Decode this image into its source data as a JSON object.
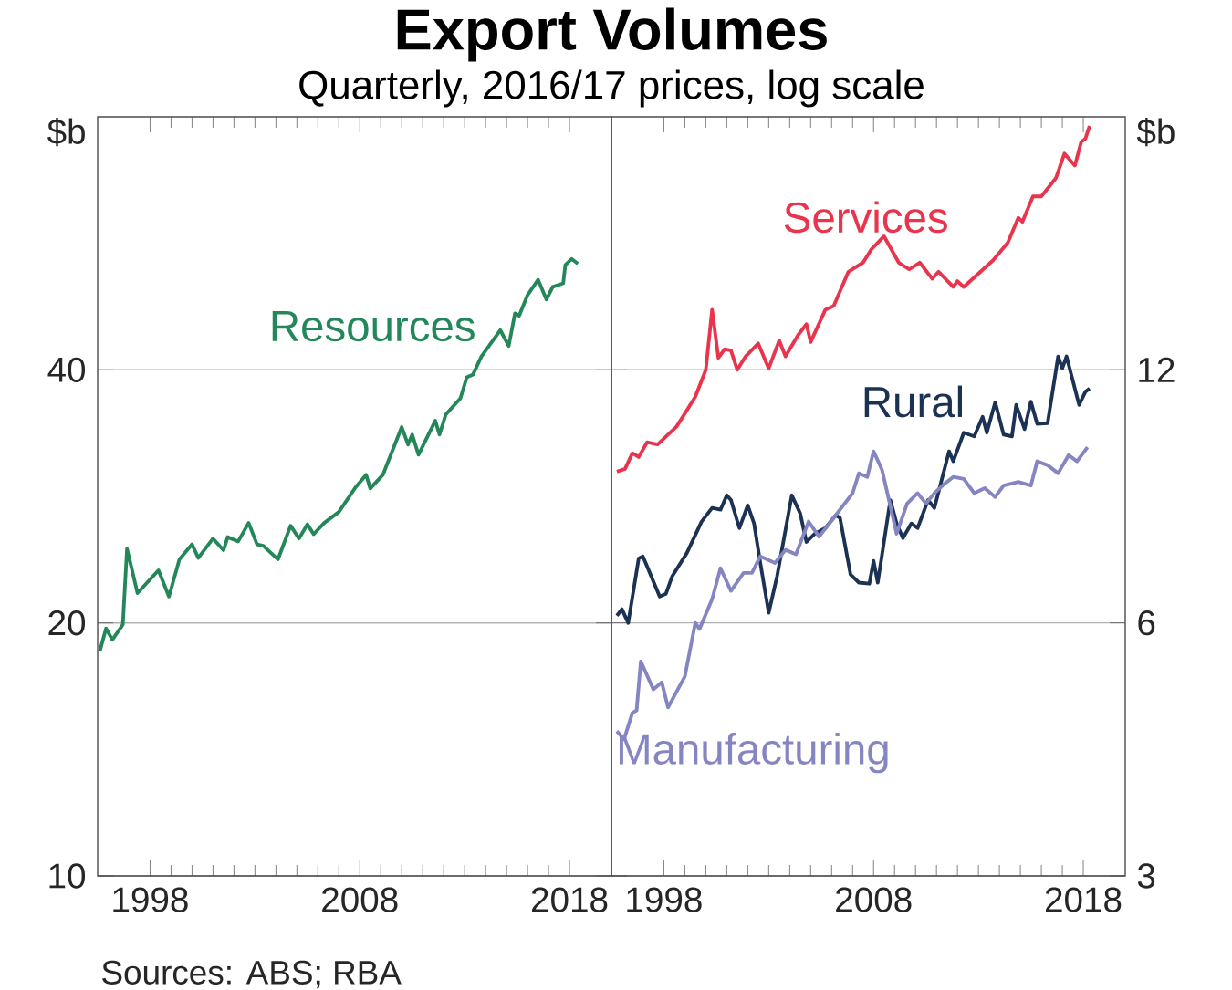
{
  "chart_data": [
    {
      "type": "line",
      "title": "Export Volumes",
      "subtitle": "Quarterly, 2016/17 prices, log scale",
      "ylabel": "$b",
      "annotations": [
        "Sources: ABS; RBA"
      ],
      "log": "y",
      "grid": "y",
      "xlim": [
        1995.5,
        2020
      ],
      "xticks": [
        1998,
        2008,
        2018
      ],
      "ylim": [
        10,
        80
      ],
      "yticks": [
        10,
        20,
        40
      ],
      "series": [
        {
          "name": "Resources",
          "color": "#23875a",
          "x": [
            1995.6,
            1995.9,
            1996.2,
            1996.7,
            1996.9,
            1997.4,
            1998.4,
            1998.9,
            1999.4,
            2000.0,
            2000.3,
            2001.0,
            2001.5,
            2001.7,
            2002.2,
            2002.7,
            2003.1,
            2003.4,
            2004.1,
            2004.7,
            2005.1,
            2005.5,
            2005.8,
            2006.3,
            2007.0,
            2007.8,
            2008.3,
            2008.5,
            2009.1,
            2010.0,
            2010.3,
            2010.5,
            2010.8,
            2011.6,
            2011.8,
            2012.1,
            2012.8,
            2013.1,
            2013.4,
            2013.8,
            2014.7,
            2015.1,
            2015.4,
            2015.6,
            2016.0,
            2016.5,
            2016.9,
            2017.2,
            2017.7,
            2017.8,
            2018.1,
            2018.4
          ],
          "values": [
            18.5,
            19.7,
            19.1,
            19.9,
            24.5,
            21.7,
            23.1,
            21.5,
            23.8,
            24.8,
            23.9,
            25.2,
            24.4,
            25.3,
            25.0,
            26.3,
            24.8,
            24.7,
            23.8,
            26.1,
            25.2,
            26.2,
            25.5,
            26.3,
            27.1,
            29.0,
            30.0,
            28.9,
            30.0,
            34.2,
            32.6,
            33.5,
            31.7,
            34.8,
            33.5,
            35.4,
            37.0,
            39.2,
            39.5,
            41.5,
            44.6,
            42.7,
            46.7,
            46.4,
            49.1,
            51.2,
            48.5,
            50.2,
            50.7,
            53.3,
            54.2,
            53.5
          ]
        }
      ]
    },
    {
      "type": "line",
      "ylabel": "$b",
      "log": "y",
      "grid": "y",
      "xlim": [
        1995.5,
        2020
      ],
      "xticks": [
        1998,
        2008,
        2018
      ],
      "ylim": [
        3,
        24
      ],
      "yticks": [
        3,
        6,
        12
      ],
      "series": [
        {
          "name": "Services",
          "color": "#e8344c",
          "x": [
            1995.76,
            1996.15,
            1996.5,
            1996.8,
            1997.2,
            1997.7,
            1998.6,
            1998.9,
            1999.5,
            2000.0,
            2000.3,
            2000.6,
            2000.9,
            2001.2,
            2001.5,
            2001.9,
            2002.5,
            2003.0,
            2003.5,
            2003.8,
            2004.4,
            2004.8,
            2005.0,
            2005.7,
            2006.1,
            2006.8,
            2007.5,
            2007.9,
            2008.5,
            2009.2,
            2009.7,
            2010.2,
            2010.8,
            2011.1,
            2011.8,
            2012.0,
            2012.3,
            2013.7,
            2014.4,
            2014.9,
            2015.1,
            2015.6,
            2016.0,
            2016.7,
            2017.1,
            2017.6,
            2017.9,
            2018.1,
            2018.3
          ],
          "values": [
            9.08,
            9.15,
            9.55,
            9.45,
            9.84,
            9.78,
            10.27,
            10.55,
            11.15,
            12.0,
            14.15,
            12.4,
            12.7,
            12.65,
            12.0,
            12.45,
            12.9,
            12.05,
            13.0,
            12.45,
            13.2,
            13.6,
            12.95,
            14.15,
            14.3,
            15.7,
            16.1,
            16.7,
            17.3,
            16.1,
            15.8,
            16.1,
            15.4,
            15.7,
            15.06,
            15.3,
            15.06,
            16.2,
            17.0,
            18.2,
            18.0,
            19.3,
            19.3,
            20.3,
            21.7,
            21.0,
            22.4,
            22.6,
            23.4
          ]
        },
        {
          "name": "Rural",
          "color": "#1c3254",
          "x": [
            1995.76,
            1996.0,
            1996.3,
            1996.8,
            1997.0,
            1997.8,
            1998.1,
            1998.4,
            1999.1,
            1999.8,
            2000.3,
            2000.7,
            2001.0,
            2001.2,
            2001.6,
            2002.0,
            2002.3,
            2002.6,
            2003.0,
            2003.4,
            2004.1,
            2004.5,
            2004.8,
            2005.2,
            2005.7,
            2006.2,
            2006.4,
            2006.9,
            2007.3,
            2007.8,
            2008.0,
            2008.2,
            2008.8,
            2009.1,
            2009.4,
            2009.8,
            2010.1,
            2010.6,
            2010.9,
            2011.6,
            2011.8,
            2012.3,
            2012.8,
            2013.2,
            2013.4,
            2013.8,
            2014.2,
            2014.6,
            2014.8,
            2015.2,
            2015.5,
            2015.8,
            2016.3,
            2016.8,
            2017.0,
            2017.2,
            2017.8,
            2018.1,
            2018.3
          ],
          "values": [
            6.12,
            6.23,
            6.0,
            7.16,
            7.2,
            6.45,
            6.5,
            6.82,
            7.27,
            7.92,
            8.22,
            8.18,
            8.51,
            8.4,
            7.78,
            8.28,
            7.88,
            7.07,
            6.17,
            6.82,
            8.51,
            8.1,
            7.49,
            7.66,
            7.78,
            8.06,
            8.0,
            6.85,
            6.7,
            6.68,
            7.11,
            6.7,
            8.4,
            7.88,
            7.57,
            7.88,
            7.78,
            8.4,
            8.22,
            9.6,
            9.34,
            10.1,
            10.0,
            10.55,
            10.1,
            10.98,
            10.05,
            10.0,
            10.9,
            10.2,
            11.0,
            10.35,
            10.37,
            12.45,
            12.05,
            12.45,
            10.9,
            11.3,
            11.4
          ]
        },
        {
          "name": "Manufacturing",
          "color": "#8585c2",
          "x": [
            1995.76,
            1996.1,
            1996.5,
            1996.7,
            1996.9,
            1997.5,
            1997.9,
            1998.2,
            1999.0,
            1999.5,
            1999.7,
            2000.3,
            2000.7,
            2001.2,
            2001.8,
            2002.2,
            2002.6,
            2003.3,
            2003.8,
            2004.3,
            2004.9,
            2005.4,
            2006.2,
            2007.0,
            2007.3,
            2007.7,
            2008.0,
            2008.4,
            2008.7,
            2009.1,
            2009.6,
            2010.1,
            2010.5,
            2010.9,
            2011.4,
            2011.8,
            2012.3,
            2012.8,
            2013.3,
            2013.8,
            2014.2,
            2014.9,
            2015.5,
            2015.8,
            2016.3,
            2016.8,
            2017.3,
            2017.7,
            2018.2
          ],
          "values": [
            4.46,
            4.36,
            4.69,
            4.72,
            5.4,
            5.0,
            5.1,
            4.76,
            5.18,
            6.0,
            5.9,
            6.4,
            6.97,
            6.55,
            6.88,
            6.88,
            7.2,
            7.07,
            7.33,
            7.24,
            7.92,
            7.6,
            8.06,
            8.56,
            9.04,
            8.95,
            9.6,
            9.13,
            8.47,
            7.66,
            8.32,
            8.56,
            8.32,
            8.56,
            8.79,
            8.95,
            8.9,
            8.56,
            8.68,
            8.47,
            8.74,
            8.83,
            8.74,
            9.34,
            9.24,
            9.04,
            9.5,
            9.34,
            9.71
          ]
        }
      ]
    }
  ]
}
